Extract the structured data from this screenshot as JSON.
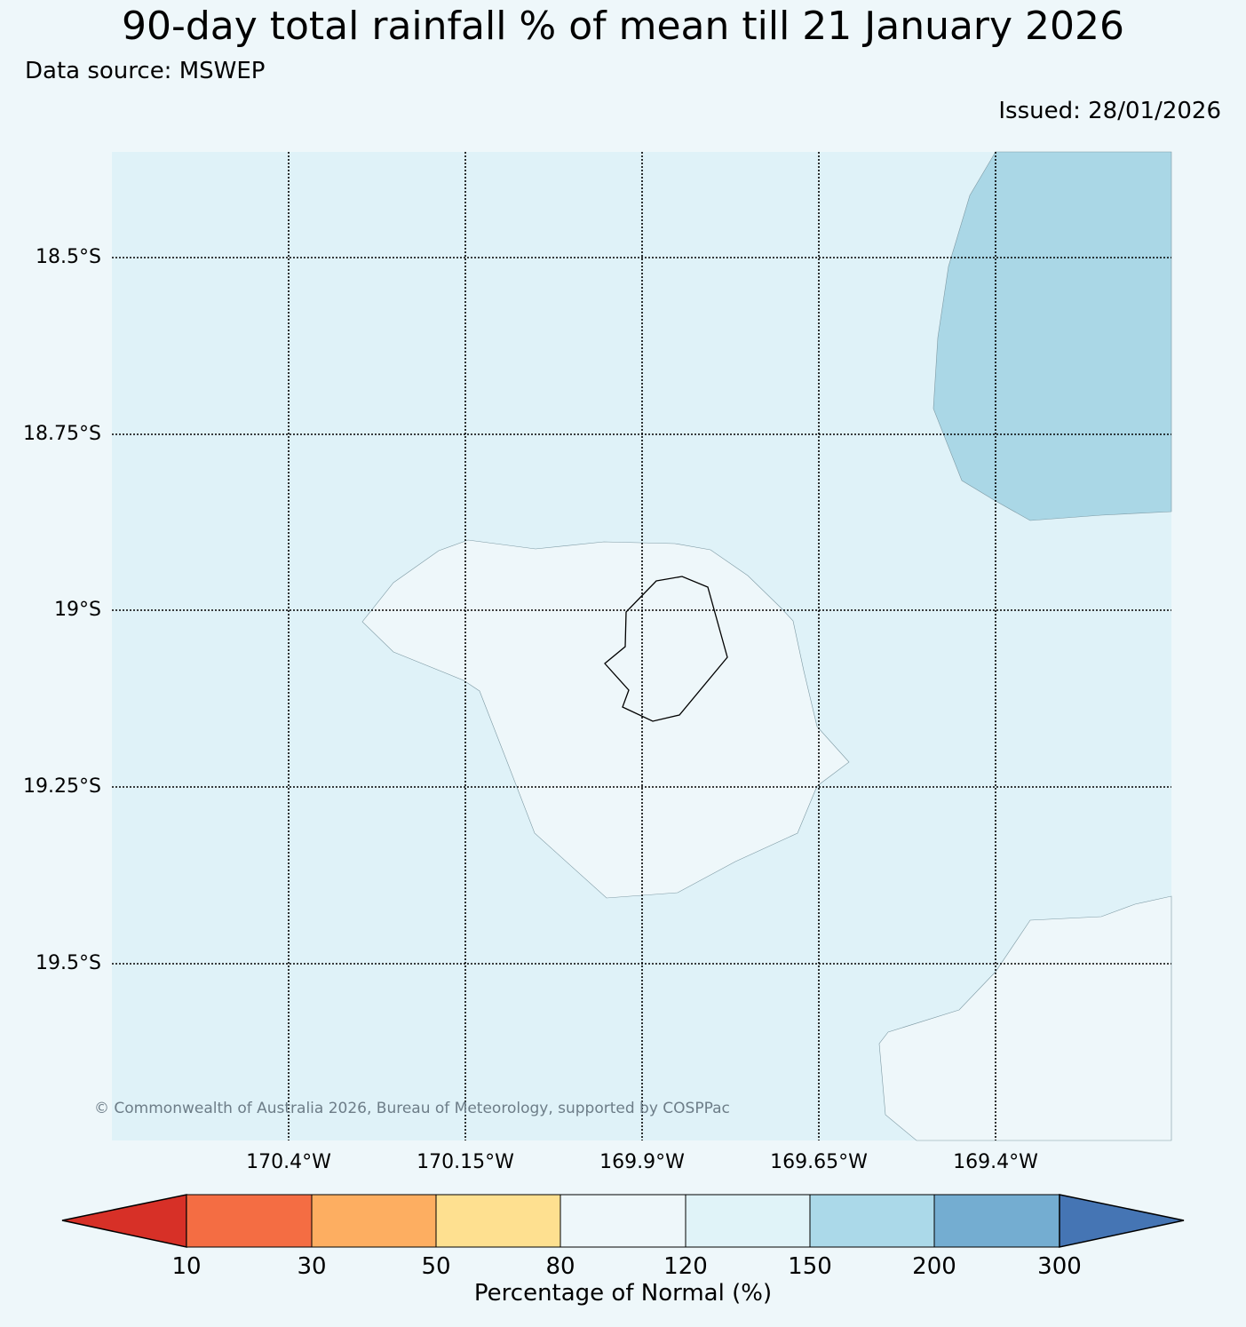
{
  "title": "90-day total rainfall % of mean till 21 January 2026",
  "source": "Data source: MSWEP",
  "issued": "Issued: 28/01/2026",
  "copyright": "© Commonwealth of Australia 2026, Bureau of Meteorology, supported by COSPPac",
  "map": {
    "lat_labels": [
      "18.5°S",
      "18.75°S",
      "19°S",
      "19.25°S",
      "19.5°S"
    ],
    "lon_labels": [
      "170.4°W",
      "170.15°W",
      "169.9°W",
      "169.65°W",
      "169.4°W"
    ],
    "colors": {
      "background_class": "#dff2f8",
      "near_normal": "#eef7fa",
      "above_normal": "#aad7e6",
      "grid": "#000000",
      "coastline": "#000000"
    }
  },
  "colorbar": {
    "title": "Percentage of Normal (%)",
    "ticks": [
      "10",
      "30",
      "50",
      "80",
      "120",
      "150",
      "200",
      "300"
    ],
    "colors": [
      "#d73027",
      "#f46d43",
      "#fdae61",
      "#fee090",
      "#eef7fa",
      "#e0f3f8",
      "#abd9e9",
      "#74add1",
      "#4575b4"
    ]
  }
}
